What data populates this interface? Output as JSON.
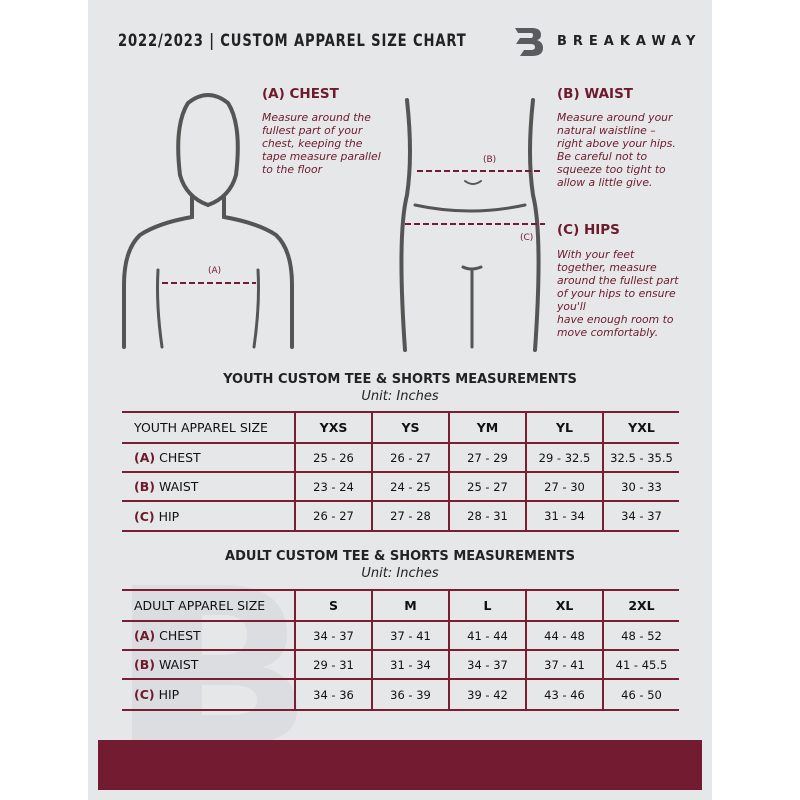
{
  "header": {
    "title": "2022/2023  |  CUSTOM APPAREL SIZE CHART",
    "brand": "BREAKAWAY",
    "logo_letter": "B"
  },
  "guides": {
    "chest": {
      "heading": "(A) CHEST",
      "marker": "(A)",
      "text": [
        "Measure around the",
        "fullest part of your",
        "chest, keeping the",
        "tape measure parallel",
        "to the floor"
      ]
    },
    "waist": {
      "heading": "(B) WAIST",
      "marker": "(B)",
      "text": [
        "Measure around your",
        "natural waistline –",
        "right above your hips.",
        "Be careful not to",
        "squeeze too tight to",
        "allow a little give."
      ]
    },
    "hips": {
      "heading": "(C) HIPS",
      "marker": "(C)",
      "text": [
        "With your feet",
        "together, measure",
        "around the fullest part",
        "of your hips to ensure",
        "you'll",
        "have enough room to",
        "move comfortably."
      ]
    }
  },
  "youth": {
    "title": "YOUTH CUSTOM TEE & SHORTS MEASUREMENTS",
    "unit": "Unit: Inches",
    "columns": [
      "YOUTH APPAREL SIZE",
      "YXS",
      "YS",
      "YM",
      "YL",
      "YXL"
    ],
    "rows": [
      {
        "letter": "(A)",
        "label": "CHEST",
        "values": [
          "25 - 26",
          "26 - 27",
          "27 - 29",
          "29 - 32.5",
          "32.5 - 35.5"
        ]
      },
      {
        "letter": "(B)",
        "label": "WAIST",
        "values": [
          "23 - 24",
          "24 - 25",
          "25 - 27",
          "27 - 30",
          "30 - 33"
        ]
      },
      {
        "letter": "(C)",
        "label": "HIP",
        "values": [
          "26 - 27",
          "27 - 28",
          "28 - 31",
          "31 - 34",
          "34 - 37"
        ]
      }
    ]
  },
  "adult": {
    "title": "ADULT CUSTOM TEE & SHORTS MEASUREMENTS",
    "unit": "Unit: Inches",
    "columns": [
      "ADULT APPAREL SIZE",
      "S",
      "M",
      "L",
      "XL",
      "2XL"
    ],
    "rows": [
      {
        "letter": "(A)",
        "label": "CHEST",
        "values": [
          "34 - 37",
          "37 - 41",
          "41 - 44",
          "44 - 48",
          "48 - 52"
        ]
      },
      {
        "letter": "(B)",
        "label": "WAIST",
        "values": [
          "29 - 31",
          "31 - 34",
          "34 - 37",
          "37 - 41",
          "41 - 45.5"
        ]
      },
      {
        "letter": "(C)",
        "label": "HIP",
        "values": [
          "34 - 36",
          "36 - 39",
          "39 - 42",
          "43 - 46",
          "46 - 50"
        ]
      }
    ]
  },
  "colors": {
    "accent": "#731b30",
    "background": "#e6e7e9",
    "text": "#222222"
  }
}
